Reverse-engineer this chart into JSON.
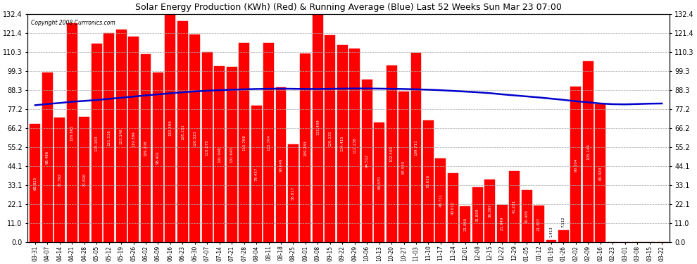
{
  "title": "Solar Energy Production (KWh) (Red) & Running Average (Blue) Last 52 Weeks Sun Mar 23 07:00",
  "copyright": "Copyright 2008 Currronics.com",
  "bar_color": "#ff0000",
  "line_color": "#0000cc",
  "background_color": "#ffffff",
  "grid_color": "#aaaaaa",
  "ylim": [
    0.0,
    132.4
  ],
  "yticks": [
    0.0,
    11.0,
    22.1,
    33.1,
    44.1,
    55.2,
    66.2,
    77.2,
    88.3,
    99.3,
    110.3,
    121.4,
    132.4
  ],
  "categories": [
    "03-31",
    "04-07",
    "04-14",
    "04-21",
    "04-28",
    "05-05",
    "05-12",
    "05-19",
    "05-26",
    "06-02",
    "06-09",
    "06-16",
    "06-23",
    "06-30",
    "07-07",
    "07-14",
    "07-21",
    "07-28",
    "08-04",
    "08-11",
    "08-18",
    "08-25",
    "09-01",
    "09-08",
    "09-15",
    "09-22",
    "09-29",
    "10-06",
    "10-13",
    "10-20",
    "10-27",
    "11-03",
    "11-10",
    "11-17",
    "11-24",
    "12-01",
    "12-08",
    "12-15",
    "12-22",
    "12-29",
    "01-05",
    "01-12",
    "01-19",
    "01-26",
    "02-02",
    "02-09",
    "02-16",
    "02-23",
    "03-01",
    "03-08",
    "03-15",
    "03-22"
  ],
  "bar_values": [
    68.825,
    98.486,
    72.392,
    126.862,
    72.826,
    115.163,
    121.316,
    123.146,
    119.389,
    109.208,
    98.401,
    132.399,
    128.151,
    120.523,
    110.075,
    101.946,
    101.64,
    115.768,
    79.457,
    115.704,
    90.049,
    56.817,
    109.283,
    133.409,
    120.131,
    114.415,
    112.138,
    94.512,
    69.67,
    102.5,
    87.53,
    109.711,
    70.636,
    48.731,
    40.012,
    21.06,
    31.809,
    36.397,
    21.949,
    41.221,
    30.405,
    21.307,
    1.413,
    7.112,
    90.104,
    105.149,
    80.029,
    0.0,
    0.0,
    0.0,
    0.0,
    0.0
  ],
  "avg_values": [
    79.5,
    80.2,
    80.8,
    81.5,
    82.0,
    82.5,
    83.2,
    83.8,
    84.5,
    85.2,
    85.8,
    86.4,
    87.0,
    87.5,
    87.9,
    88.2,
    88.5,
    88.7,
    88.9,
    89.0,
    89.1,
    89.0,
    88.9,
    88.9,
    89.0,
    89.1,
    89.2,
    89.2,
    89.1,
    89.0,
    88.9,
    88.7,
    88.5,
    88.2,
    87.8,
    87.4,
    87.0,
    86.5,
    85.8,
    85.2,
    84.6,
    84.0,
    83.3,
    82.6,
    81.8,
    81.2,
    80.5,
    80.1,
    80.0,
    80.2,
    80.4,
    80.5
  ]
}
